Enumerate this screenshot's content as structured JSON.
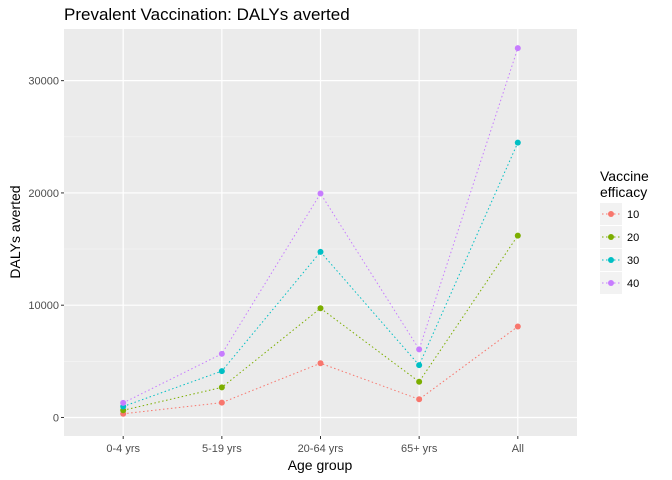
{
  "chart_data": {
    "type": "line",
    "title": "Prevalent Vaccination: DALYs averted",
    "xlabel": "Age group",
    "ylabel": "DALYs averted",
    "categories": [
      "0-4 yrs",
      "5-19 yrs",
      "20-64 yrs",
      "65+ yrs",
      "All"
    ],
    "yticks": [
      0,
      10000,
      20000,
      30000
    ],
    "ylim": [
      -1650,
      34600
    ],
    "grid": true,
    "line_style": "dotted",
    "legend": {
      "title_lines": [
        "Vaccine",
        "efficacy"
      ],
      "placement": "right"
    },
    "series": [
      {
        "name": "10",
        "color": "#F8766D",
        "values": [
          330,
          1320,
          4830,
          1620,
          8100
        ]
      },
      {
        "name": "20",
        "color": "#7CAE00",
        "values": [
          640,
          2680,
          9730,
          3180,
          16200
        ]
      },
      {
        "name": "30",
        "color": "#00BFC4",
        "values": [
          980,
          4130,
          14750,
          4660,
          24480
        ]
      },
      {
        "name": "40",
        "color": "#C77CFF",
        "values": [
          1300,
          5670,
          19950,
          6070,
          32900
        ]
      }
    ]
  }
}
